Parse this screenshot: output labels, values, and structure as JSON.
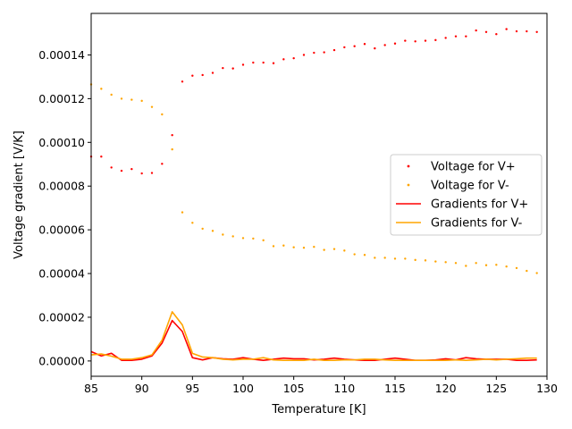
{
  "chart_data": {
    "type": "scatter",
    "title": "",
    "xlabel": "Temperature [K]",
    "ylabel": "Voltage gradient [V/K]",
    "xlim": [
      85,
      130
    ],
    "ylim": [
      -7e-06,
      0.000159
    ],
    "xticks": [
      85,
      90,
      95,
      100,
      105,
      110,
      115,
      120,
      125,
      130
    ],
    "xtick_labels": [
      "85",
      "90",
      "95",
      "100",
      "105",
      "110",
      "115",
      "120",
      "125",
      "130"
    ],
    "yticks": [
      0,
      2e-05,
      4e-05,
      6e-05,
      8e-05,
      0.0001,
      0.00012,
      0.00014
    ],
    "ytick_labels": [
      "0.00000",
      "0.00002",
      "0.00004",
      "0.00006",
      "0.00008",
      "0.00010",
      "0.00012",
      "0.00014"
    ],
    "grid": false,
    "legend_position": "center-right",
    "series": [
      {
        "name": "Voltage for V+",
        "kind": "scatter",
        "color": "#ff0000",
        "x": [
          85,
          86,
          87,
          88,
          89,
          90,
          91,
          92,
          93,
          94,
          95,
          96,
          97,
          98,
          99,
          100,
          101,
          102,
          103,
          104,
          105,
          106,
          107,
          108,
          109,
          110,
          111,
          112,
          113,
          114,
          115,
          116,
          117,
          118,
          119,
          120,
          121,
          122,
          123,
          124,
          125,
          126,
          127,
          128,
          129
        ],
        "y": [
          9.35e-05,
          9.35e-05,
          8.85e-05,
          8.7e-05,
          8.78e-05,
          8.58e-05,
          8.6e-05,
          9.02e-05,
          0.0001033,
          0.0001278,
          0.0001305,
          0.0001308,
          0.0001318,
          0.000134,
          0.0001338,
          0.0001355,
          0.0001365,
          0.0001365,
          0.0001362,
          0.000138,
          0.0001385,
          0.00014,
          0.000141,
          0.0001412,
          0.0001422,
          0.0001435,
          0.000144,
          0.000145,
          0.000143,
          0.0001445,
          0.0001452,
          0.0001465,
          0.0001462,
          0.0001465,
          0.0001468,
          0.0001478,
          0.0001485,
          0.0001485,
          0.0001512,
          0.0001505,
          0.0001495,
          0.0001518,
          0.0001508,
          0.0001508,
          0.0001505
        ]
      },
      {
        "name": "Voltage for V-",
        "kind": "scatter",
        "color": "#ffa500",
        "x": [
          85,
          86,
          87,
          88,
          89,
          90,
          91,
          92,
          93,
          94,
          95,
          96,
          97,
          98,
          99,
          100,
          101,
          102,
          103,
          104,
          105,
          106,
          107,
          108,
          109,
          110,
          111,
          112,
          113,
          114,
          115,
          116,
          117,
          118,
          119,
          120,
          121,
          122,
          123,
          124,
          125,
          126,
          127,
          128,
          129
        ],
        "y": [
          0.0001265,
          0.0001245,
          0.0001218,
          0.00012,
          0.0001195,
          0.000119,
          0.0001162,
          0.0001128,
          9.68e-05,
          6.8e-05,
          6.32e-05,
          6.05e-05,
          5.95e-05,
          5.78e-05,
          5.7e-05,
          5.62e-05,
          5.6e-05,
          5.52e-05,
          5.25e-05,
          5.28e-05,
          5.2e-05,
          5.18e-05,
          5.22e-05,
          5.08e-05,
          5.12e-05,
          5.05e-05,
          4.88e-05,
          4.85e-05,
          4.72e-05,
          4.72e-05,
          4.68e-05,
          4.68e-05,
          4.62e-05,
          4.6e-05,
          4.55e-05,
          4.52e-05,
          4.48e-05,
          4.35e-05,
          4.48e-05,
          4.38e-05,
          4.4e-05,
          4.32e-05,
          4.25e-05,
          4.12e-05,
          4.02e-05
        ]
      },
      {
        "name": "Gradients for V+",
        "kind": "line",
        "color": "#ff0000",
        "x": [
          85,
          86,
          87,
          88,
          89,
          90,
          91,
          92,
          93,
          94,
          95,
          96,
          97,
          98,
          99,
          100,
          101,
          102,
          103,
          104,
          105,
          106,
          107,
          108,
          109,
          110,
          111,
          112,
          113,
          114,
          115,
          116,
          117,
          118,
          119,
          120,
          121,
          122,
          123,
          124,
          125,
          126,
          127,
          128,
          129
        ],
        "y": [
          4.3e-06,
          2.3e-06,
          3.5e-06,
          3e-07,
          3e-07,
          8e-07,
          2.3e-06,
          8.2e-06,
          1.85e-05,
          1.35e-05,
          1.5e-06,
          5e-07,
          1.5e-06,
          1e-06,
          8e-07,
          1.5e-06,
          8e-07,
          3e-07,
          8e-07,
          1.3e-06,
          1e-06,
          1e-06,
          5e-07,
          8e-07,
          1.3e-06,
          8e-07,
          5e-07,
          3e-07,
          3e-07,
          8e-07,
          1.3e-06,
          8e-07,
          3e-07,
          3e-07,
          5e-07,
          1e-06,
          5e-07,
          1.5e-06,
          1e-06,
          8e-07,
          8e-07,
          8e-07,
          3e-07,
          3e-07,
          5e-07
        ]
      },
      {
        "name": "Gradients for V-",
        "kind": "line",
        "color": "#ffa500",
        "x": [
          85,
          86,
          87,
          88,
          89,
          90,
          91,
          92,
          93,
          94,
          95,
          96,
          97,
          98,
          99,
          100,
          101,
          102,
          103,
          104,
          105,
          106,
          107,
          108,
          109,
          110,
          111,
          112,
          113,
          114,
          115,
          116,
          117,
          118,
          119,
          120,
          121,
          122,
          123,
          124,
          125,
          126,
          127,
          128,
          129
        ],
        "y": [
          2.8e-06,
          3.2e-06,
          2.2e-06,
          8e-07,
          8e-07,
          1.5e-06,
          2.8e-06,
          9.5e-06,
          2.25e-05,
          1.65e-05,
          3.5e-06,
          1.8e-06,
          1.5e-06,
          8e-07,
          5e-07,
          8e-07,
          8e-07,
          1.5e-06,
          5e-07,
          3e-07,
          3e-07,
          3e-07,
          8e-07,
          3e-07,
          3e-07,
          5e-07,
          5e-07,
          8e-07,
          8e-07,
          5e-07,
          3e-07,
          3e-07,
          3e-07,
          3e-07,
          3e-07,
          3e-07,
          5e-07,
          3e-07,
          5e-07,
          8e-07,
          5e-07,
          8e-07,
          1e-06,
          1.3e-06,
          1.3e-06
        ]
      }
    ]
  }
}
